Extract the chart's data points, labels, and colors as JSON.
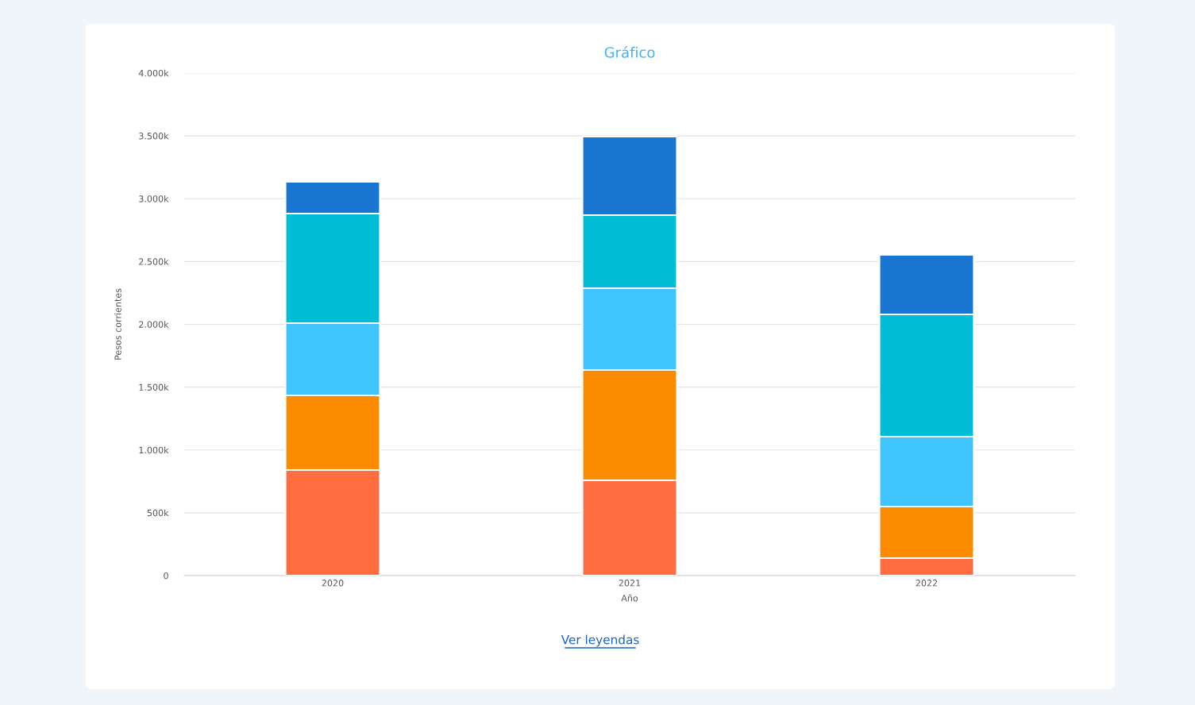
{
  "chart_data": {
    "type": "bar",
    "title": "Gráfico",
    "xlabel": "Año",
    "ylabel": "Pesos corrientes",
    "categories": [
      "2020",
      "2021",
      "2022"
    ],
    "stacked": true,
    "series": [
      {
        "color": "#ff6d40",
        "values": [
          840,
          758,
          139
        ]
      },
      {
        "color": "#fb8c00",
        "values": [
          594,
          879,
          411
        ]
      },
      {
        "color": "#40c4ff",
        "values": [
          575,
          651,
          556
        ]
      },
      {
        "color": "#00bcd4",
        "values": [
          873,
          581,
          973
        ]
      },
      {
        "color": "#1976d2",
        "values": [
          252,
          625,
          474
        ]
      }
    ],
    "ylim": [
      0,
      4000
    ],
    "yticks": [
      {
        "value": 0,
        "label": "0"
      },
      {
        "value": 500,
        "label": "500k"
      },
      {
        "value": 1000,
        "label": "1.000k"
      },
      {
        "value": 1500,
        "label": "1.500k"
      },
      {
        "value": 2000,
        "label": "2.000k"
      },
      {
        "value": 2500,
        "label": "2.500k"
      },
      {
        "value": 3000,
        "label": "3.000k"
      },
      {
        "value": 3500,
        "label": "3.500k"
      },
      {
        "value": 4000,
        "label": "4.000k"
      }
    ],
    "grid": "y",
    "annotations": [
      "Ver leyendas"
    ]
  }
}
